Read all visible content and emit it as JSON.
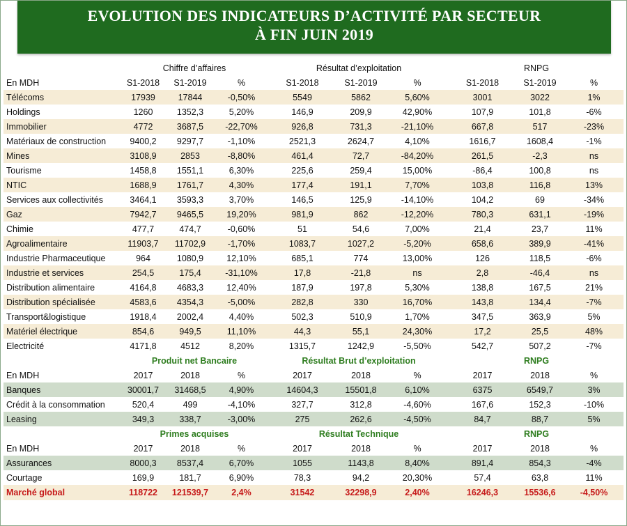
{
  "title": {
    "line1": "EVOLUTION DES INDICATEURS D’ACTIVITÉ PAR SECTEUR",
    "line2": "À FIN JUIN 2019"
  },
  "section1": {
    "group1": "Chiffre d’affaires",
    "group2": "Résultat d’exploitation",
    "group3": "RNPG",
    "unit": "En MDH",
    "cols": [
      "S1-2018",
      "S1-2019",
      "%",
      "S1-2018",
      "S1-2019",
      "%",
      "S1-2018",
      "S1-2019",
      "%"
    ],
    "rows": [
      {
        "label": "Télécoms",
        "v": [
          "17939",
          "17844",
          "-0,50%",
          "5549",
          "5862",
          "5,60%",
          "3001",
          "3022",
          "1%"
        ]
      },
      {
        "label": "Holdings",
        "v": [
          "1260",
          "1352,3",
          "5,20%",
          "146,9",
          "209,9",
          "42,90%",
          "107,9",
          "101,8",
          "-6%"
        ]
      },
      {
        "label": "Immobilier",
        "v": [
          "4772",
          "3687,5",
          "-22,70%",
          "926,8",
          "731,3",
          "-21,10%",
          "667,8",
          "517",
          "-23%"
        ]
      },
      {
        "label": "Matériaux de construction",
        "v": [
          "9400,2",
          "9297,7",
          "-1,10%",
          "2521,3",
          "2624,7",
          "4,10%",
          "1616,7",
          "1608,4",
          "-1%"
        ]
      },
      {
        "label": "Mines",
        "v": [
          "3108,9",
          "2853",
          "-8,80%",
          "461,4",
          "72,7",
          "-84,20%",
          "261,5",
          "-2,3",
          "ns"
        ]
      },
      {
        "label": "Tourisme",
        "v": [
          "1458,8",
          "1551,1",
          "6,30%",
          "225,6",
          "259,4",
          "15,00%",
          "-86,4",
          "100,8",
          "ns"
        ]
      },
      {
        "label": "NTIC",
        "v": [
          "1688,9",
          "1761,7",
          "4,30%",
          "177,4",
          "191,1",
          "7,70%",
          "103,8",
          "116,8",
          "13%"
        ]
      },
      {
        "label": "Services aux collectivités",
        "v": [
          "3464,1",
          "3593,3",
          "3,70%",
          "146,5",
          "125,9",
          "-14,10%",
          "104,2",
          "69",
          "-34%"
        ]
      },
      {
        "label": "Gaz",
        "v": [
          "7942,7",
          "9465,5",
          "19,20%",
          "981,9",
          "862",
          "-12,20%",
          "780,3",
          "631,1",
          "-19%"
        ]
      },
      {
        "label": "Chimie",
        "v": [
          "477,7",
          "474,7",
          "-0,60%",
          "51",
          "54,6",
          "7,00%",
          "21,4",
          "23,7",
          "11%"
        ]
      },
      {
        "label": "Agroalimentaire",
        "v": [
          "11903,7",
          "11702,9",
          "-1,70%",
          "1083,7",
          "1027,2",
          "-5,20%",
          "658,6",
          "389,9",
          "-41%"
        ]
      },
      {
        "label": "Industrie Pharmaceutique",
        "v": [
          "964",
          "1080,9",
          "12,10%",
          "685,1",
          "774",
          "13,00%",
          "126",
          "118,5",
          "-6%"
        ]
      },
      {
        "label": "Industrie et services",
        "v": [
          "254,5",
          "175,4",
          "-31,10%",
          "17,8",
          "-21,8",
          "ns",
          "2,8",
          "-46,4",
          "ns"
        ]
      },
      {
        "label": "Distribution alimentaire",
        "v": [
          "4164,8",
          "4683,3",
          "12,40%",
          "187,9",
          "197,8",
          "5,30%",
          "138,8",
          "167,5",
          "21%"
        ]
      },
      {
        "label": "Distribution spécialisée",
        "v": [
          "4583,6",
          "4354,3",
          "-5,00%",
          "282,8",
          "330",
          "16,70%",
          "143,8",
          "134,4",
          "-7%"
        ]
      },
      {
        "label": "Transport&logistique",
        "v": [
          "1918,4",
          "2002,4",
          "4,40%",
          "502,3",
          "510,9",
          "1,70%",
          "347,5",
          "363,9",
          "5%"
        ]
      },
      {
        "label": "Matériel électrique",
        "v": [
          "854,6",
          "949,5",
          "11,10%",
          "44,3",
          "55,1",
          "24,30%",
          "17,2",
          "25,5",
          "48%"
        ]
      },
      {
        "label": "Electricité",
        "v": [
          "4171,8",
          "4512",
          "8,20%",
          "1315,7",
          "1242,9",
          "-5,50%",
          "542,7",
          "507,2",
          "-7%"
        ]
      }
    ]
  },
  "section2": {
    "group1": "Produit net Bancaire",
    "group2": "Résultat Brut d’exploitation",
    "group3": "RNPG",
    "unit": "En MDH",
    "cols": [
      "2017",
      "2018",
      "%",
      "2017",
      "2018",
      "%",
      "2017",
      "2018",
      "%"
    ],
    "rows": [
      {
        "label": "Banques",
        "v": [
          "30001,7",
          "31468,5",
          "4,90%",
          "14604,3",
          "15501,8",
          "6,10%",
          "6375",
          "6549,7",
          "3%"
        ]
      },
      {
        "label": "Crédit à la consommation",
        "v": [
          "520,4",
          "499",
          "-4,10%",
          "327,7",
          "312,8",
          "-4,60%",
          "167,6",
          "152,3",
          "-10%"
        ]
      },
      {
        "label": "Leasing",
        "v": [
          "349,3",
          "338,7",
          "-3,00%",
          "275",
          "262,6",
          "-4,50%",
          "84,7",
          "88,7",
          "5%"
        ]
      }
    ]
  },
  "section3": {
    "group1": "Primes acquises",
    "group2": "Résultat Technique",
    "group3": "RNPG",
    "unit": "En MDH",
    "cols": [
      "2017",
      "2018",
      "%",
      "2017",
      "2018",
      "%",
      "2017",
      "2018",
      "%"
    ],
    "rows": [
      {
        "label": "Assurances",
        "v": [
          "8000,3",
          "8537,4",
          "6,70%",
          "1055",
          "1143,8",
          "8,40%",
          "891,4",
          "854,3",
          "-4%"
        ]
      },
      {
        "label": "Courtage",
        "v": [
          "169,9",
          "181,7",
          "6,90%",
          "78,3",
          "94,2",
          "20,30%",
          "57,4",
          "63,8",
          "11%"
        ]
      }
    ]
  },
  "total": {
    "label": "Marché global",
    "v": [
      "118722",
      "121539,7",
      "2,4%",
      "31542",
      "32298,9",
      "2,40%",
      "16246,3",
      "15536,6",
      "-4,50%"
    ]
  }
}
